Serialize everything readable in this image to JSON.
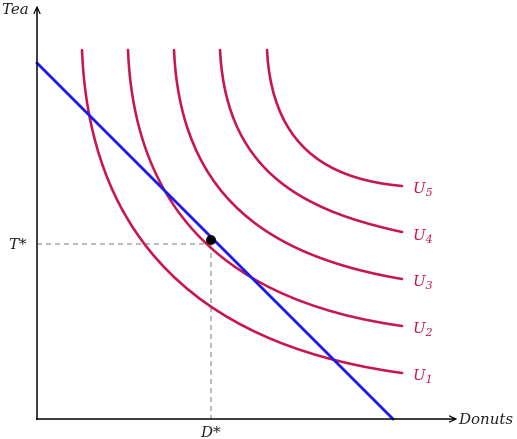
{
  "axes": {
    "y_label": "Tea",
    "x_label": "Donuts",
    "y_tick": "T*",
    "x_tick": "D*"
  },
  "curves": [
    {
      "name": "U",
      "sub": "1"
    },
    {
      "name": "U",
      "sub": "2"
    },
    {
      "name": "U",
      "sub": "3"
    },
    {
      "name": "U",
      "sub": "4"
    },
    {
      "name": "U",
      "sub": "5"
    }
  ],
  "colors": {
    "curve": "#c8174f",
    "budget_line": "#1a1aee",
    "axis": "#000000",
    "guide": "#7a7a7a",
    "point": "#000000"
  }
}
